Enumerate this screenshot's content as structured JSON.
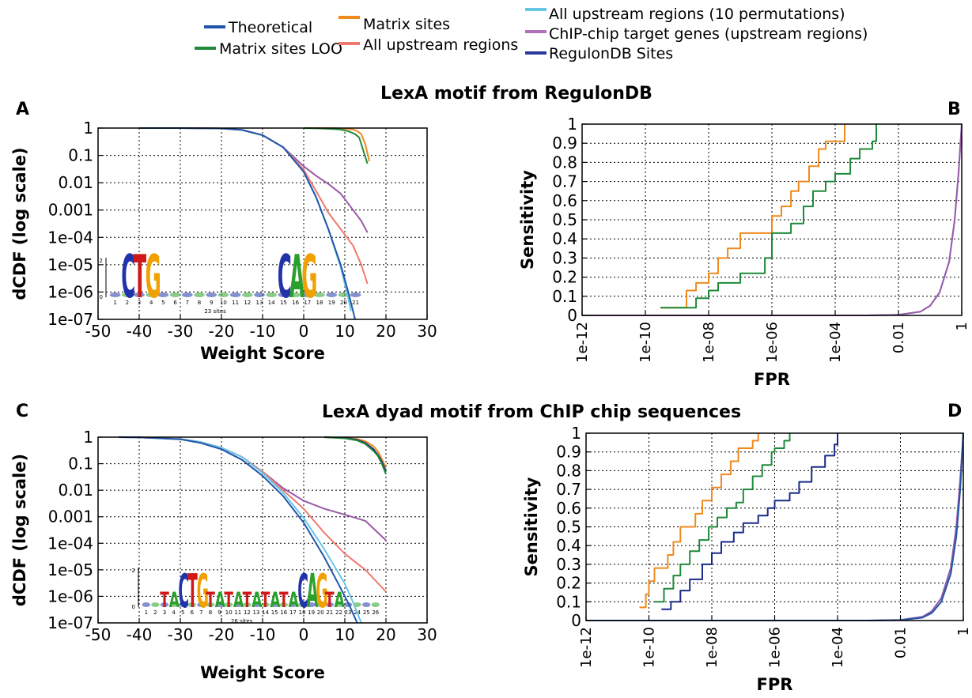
{
  "legend": [
    {
      "name": "Theoretical",
      "color": "#2255aa"
    },
    {
      "name": "Matrix sites LOO",
      "color": "#1f8a3a"
    },
    {
      "name": "Matrix sites",
      "color": "#f08a1c"
    },
    {
      "name": "All upstream regions",
      "color": "#f07870"
    },
    {
      "name": "All upstream regions (10 permutations)",
      "color": "#67c7e6"
    },
    {
      "name": "ChIP-chip target genes (upstream regions)",
      "color": "#b070b8"
    },
    {
      "name": "RegulonDB Sites",
      "color": "#2a3a9a"
    }
  ],
  "rows": [
    {
      "title": "LexA motif from RegulonDB"
    },
    {
      "title": "LexA dyad motif from ChIP chip sequences"
    }
  ],
  "colors": {
    "theoretical": "#2255aa",
    "loo": "#1f8a3a",
    "matrix": "#f08a1c",
    "upstream": "#f07870",
    "perm": "#67c7e6",
    "chip": "#9b59a8",
    "regulon": "#1a2a88"
  },
  "chart_data": [
    {
      "panel": "A",
      "type": "line",
      "xlabel": "Weight Score",
      "ylabel": "dCDF (log scale)",
      "xlim": [
        -50,
        30
      ],
      "ylim": [
        1e-07,
        1
      ],
      "yscale": "log",
      "xticks": [
        -50,
        -40,
        -30,
        -20,
        -10,
        0,
        10,
        20,
        30
      ],
      "yticks": [
        "1",
        "0.1",
        "0.01",
        "0.001",
        "1e-04",
        "1e-05",
        "1e-06",
        "1e-07"
      ],
      "logo_label": "23 sites",
      "logo_letters": [
        "C",
        "T",
        "G",
        "C",
        "A",
        "G"
      ],
      "series": [
        {
          "key": "chip",
          "x": [
            -40,
            -30,
            -20,
            -15,
            -10,
            -5,
            0,
            3,
            6,
            9,
            12,
            14,
            15.5
          ],
          "y": [
            1,
            1,
            0.97,
            0.85,
            0.55,
            0.2,
            0.04,
            0.018,
            0.009,
            0.004,
            0.001,
            0.0004,
            0.00015
          ]
        },
        {
          "key": "upstream",
          "x": [
            -40,
            -30,
            -20,
            -15,
            -10,
            -5,
            0,
            3,
            6,
            9,
            12,
            14,
            15.5
          ],
          "y": [
            1,
            1,
            0.97,
            0.85,
            0.55,
            0.2,
            0.03,
            0.005,
            0.0008,
            0.0002,
            5e-05,
            1e-05,
            2e-06
          ]
        },
        {
          "key": "perm",
          "x": [
            -40,
            -30,
            -20,
            -15,
            -10,
            -5,
            0,
            3,
            6,
            9,
            10.5,
            11.5
          ],
          "y": [
            1,
            1,
            0.97,
            0.85,
            0.55,
            0.2,
            0.025,
            0.003,
            0.0002,
            8e-06,
            1e-06,
            2e-07
          ]
        },
        {
          "key": "theoretical",
          "x": [
            -40,
            -30,
            -20,
            -15,
            -10,
            -5,
            0,
            3,
            6,
            9,
            11,
            12.5
          ],
          "y": [
            1,
            1,
            0.97,
            0.85,
            0.55,
            0.2,
            0.025,
            0.003,
            0.0002,
            1e-05,
            8e-07,
            1e-07
          ]
        },
        {
          "key": "matrix",
          "x": [
            0,
            5,
            8,
            10,
            12,
            13,
            14,
            15,
            16
          ],
          "y": [
            1,
            1,
            0.98,
            0.95,
            0.88,
            0.78,
            0.6,
            0.25,
            0.06
          ]
        },
        {
          "key": "loo",
          "x": [
            0,
            4,
            7,
            9,
            11,
            12.5,
            13.5,
            14.5,
            15.5
          ],
          "y": [
            1,
            0.97,
            0.93,
            0.88,
            0.75,
            0.6,
            0.45,
            0.15,
            0.05
          ]
        }
      ]
    },
    {
      "panel": "B",
      "type": "line",
      "xlabel": "FPR",
      "ylabel": "Sensitivity",
      "xlim": [
        1e-12,
        1
      ],
      "xscale": "log",
      "ylim": [
        0,
        1
      ],
      "xticks": [
        "1e-12",
        "1e-10",
        "1e-08",
        "1e-06",
        "1e-04",
        "0.01",
        "1"
      ],
      "yticks": [
        0,
        0.1,
        0.2,
        0.3,
        0.4,
        0.5,
        0.6,
        0.7,
        0.8,
        0.9,
        1
      ],
      "series": [
        {
          "key": "matrix",
          "x": [
            3e-10,
            1e-09,
            2e-09,
            4e-09,
            6e-09,
            1e-08,
            2e-08,
            4e-08,
            1e-07,
            2e-07,
            5e-07,
            1e-06,
            2e-06,
            4e-06,
            7e-06,
            1.5e-05,
            3e-05,
            5e-05,
            0.0001,
            0.0002
          ],
          "y": [
            0.04,
            0.04,
            0.13,
            0.17,
            0.17,
            0.22,
            0.3,
            0.35,
            0.43,
            0.43,
            0.43,
            0.52,
            0.57,
            0.65,
            0.7,
            0.78,
            0.87,
            0.91,
            0.91,
            1
          ]
        },
        {
          "key": "loo",
          "x": [
            3e-10,
            2e-09,
            4e-09,
            1e-08,
            2e-08,
            5e-08,
            1e-07,
            4e-07,
            6e-07,
            1e-06,
            2e-06,
            4e-06,
            1e-05,
            2e-05,
            5e-05,
            0.0001,
            0.0003,
            0.0006,
            0.0015,
            0.002
          ],
          "y": [
            0.04,
            0.04,
            0.09,
            0.13,
            0.17,
            0.17,
            0.22,
            0.22,
            0.3,
            0.43,
            0.43,
            0.48,
            0.57,
            0.65,
            0.7,
            0.74,
            0.82,
            0.87,
            0.91,
            1
          ]
        },
        {
          "key": "perm",
          "x": [
            1e-12,
            0.001,
            0.01,
            0.05,
            0.1,
            0.2,
            0.4,
            0.6,
            0.8,
            1
          ],
          "y": [
            0,
            0,
            0.003,
            0.02,
            0.05,
            0.12,
            0.28,
            0.5,
            0.75,
            1
          ]
        },
        {
          "key": "chip",
          "x": [
            1e-12,
            0.001,
            0.01,
            0.05,
            0.1,
            0.2,
            0.4,
            0.6,
            0.8,
            1
          ],
          "y": [
            0,
            0,
            0.003,
            0.02,
            0.05,
            0.12,
            0.28,
            0.5,
            0.75,
            1
          ]
        }
      ]
    },
    {
      "panel": "C",
      "type": "line",
      "xlabel": "Weight Score",
      "ylabel": "dCDF (log scale)",
      "xlim": [
        -50,
        30
      ],
      "ylim": [
        1e-07,
        1
      ],
      "yscale": "log",
      "xticks": [
        -50,
        -40,
        -30,
        -20,
        -10,
        0,
        10,
        20,
        30
      ],
      "yticks": [
        "1",
        "0.1",
        "0.01",
        "0.001",
        "1e-04",
        "1e-05",
        "1e-06",
        "1e-07"
      ],
      "logo_label": "26 sites",
      "logo_letters": [
        "T",
        "A",
        "C",
        "T",
        "G",
        "T",
        "A",
        "T",
        "A",
        "T",
        "A",
        "T",
        "A",
        "T",
        "A",
        "C",
        "A",
        "G",
        "T",
        "A"
      ],
      "series": [
        {
          "key": "chip",
          "x": [
            -45,
            -40,
            -30,
            -25,
            -20,
            -15,
            -10,
            -5,
            0,
            5,
            10,
            15,
            20
          ],
          "y": [
            1,
            0.98,
            0.85,
            0.65,
            0.4,
            0.18,
            0.05,
            0.012,
            0.004,
            0.002,
            0.0012,
            0.0007,
            0.00013
          ]
        },
        {
          "key": "upstream",
          "x": [
            -45,
            -40,
            -30,
            -25,
            -20,
            -15,
            -10,
            -5,
            0,
            5,
            10,
            15,
            20
          ],
          "y": [
            1,
            0.98,
            0.85,
            0.65,
            0.4,
            0.18,
            0.05,
            0.01,
            0.002,
            0.00025,
            4e-05,
            1e-05,
            1.5e-06
          ]
        },
        {
          "key": "perm",
          "x": [
            -45,
            -40,
            -30,
            -25,
            -20,
            -15,
            -10,
            -5,
            0,
            5,
            10,
            12,
            14
          ],
          "y": [
            1,
            0.98,
            0.85,
            0.65,
            0.4,
            0.18,
            0.045,
            0.008,
            0.0009,
            6e-05,
            3e-06,
            6e-07,
            1e-07
          ]
        },
        {
          "key": "theoretical",
          "x": [
            -45,
            -40,
            -30,
            -25,
            -20,
            -15,
            -10,
            -5,
            0,
            5,
            9,
            11,
            13
          ],
          "y": [
            1,
            0.98,
            0.83,
            0.6,
            0.35,
            0.14,
            0.035,
            0.006,
            0.0006,
            3e-05,
            2e-06,
            5e-07,
            1e-07
          ]
        },
        {
          "key": "matrix",
          "x": [
            5,
            10,
            13,
            15,
            17,
            18,
            19,
            20
          ],
          "y": [
            1,
            0.95,
            0.85,
            0.7,
            0.45,
            0.3,
            0.15,
            0.07
          ]
        },
        {
          "key": "regulon",
          "x": [
            5,
            10,
            13,
            15,
            17,
            18,
            19,
            20
          ],
          "y": [
            1,
            0.92,
            0.8,
            0.6,
            0.35,
            0.22,
            0.12,
            0.05
          ]
        },
        {
          "key": "loo",
          "x": [
            5,
            10,
            13,
            15,
            17,
            18,
            19,
            20
          ],
          "y": [
            1,
            0.9,
            0.75,
            0.55,
            0.3,
            0.2,
            0.1,
            0.04
          ]
        }
      ]
    },
    {
      "panel": "D",
      "type": "line",
      "xlabel": "FPR",
      "ylabel": "Sensitivity",
      "xlim": [
        1e-12,
        1
      ],
      "xscale": "log",
      "ylim": [
        0,
        1
      ],
      "xticks": [
        "1e-12",
        "1e-10",
        "1e-08",
        "1e-06",
        "1e-04",
        "0.01",
        "1"
      ],
      "yticks": [
        0,
        0.1,
        0.2,
        0.3,
        0.4,
        0.5,
        0.6,
        0.7,
        0.8,
        0.9,
        1
      ],
      "series": [
        {
          "key": "matrix",
          "x": [
            5e-11,
            8e-11,
            1e-10,
            1.5e-10,
            2.5e-10,
            4e-10,
            6e-10,
            1e-09,
            2e-09,
            3e-09,
            5e-09,
            1e-08,
            2e-08,
            4e-08,
            7e-08,
            1e-07,
            2e-07,
            3e-07
          ],
          "y": [
            0.07,
            0.14,
            0.21,
            0.28,
            0.28,
            0.35,
            0.42,
            0.5,
            0.5,
            0.57,
            0.64,
            0.71,
            0.78,
            0.85,
            0.92,
            0.92,
            0.96,
            1
          ]
        },
        {
          "key": "loo",
          "x": [
            1.5e-10,
            3e-10,
            6e-10,
            1e-09,
            2e-09,
            4e-09,
            8e-09,
            1.5e-08,
            3e-08,
            6e-08,
            1e-07,
            2e-07,
            4e-07,
            8e-07,
            1e-06,
            2e-06,
            3e-06
          ],
          "y": [
            0.1,
            0.17,
            0.24,
            0.3,
            0.37,
            0.43,
            0.5,
            0.55,
            0.6,
            0.63,
            0.7,
            0.77,
            0.83,
            0.9,
            0.92,
            0.96,
            1
          ]
        },
        {
          "key": "regulon",
          "x": [
            2.5e-10,
            5e-10,
            1e-09,
            2e-09,
            5e-09,
            1e-08,
            2e-08,
            5e-08,
            1e-07,
            3e-07,
            6e-07,
            1e-06,
            3e-06,
            6e-06,
            1.5e-05,
            4e-05,
            8e-05,
            0.0001
          ],
          "y": [
            0.06,
            0.1,
            0.16,
            0.22,
            0.3,
            0.36,
            0.42,
            0.47,
            0.52,
            0.56,
            0.6,
            0.64,
            0.68,
            0.74,
            0.82,
            0.88,
            0.94,
            1
          ]
        },
        {
          "key": "perm",
          "x": [
            1e-12,
            0.001,
            0.01,
            0.05,
            0.1,
            0.2,
            0.4,
            0.6,
            0.8,
            1
          ],
          "y": [
            0,
            0,
            0.003,
            0.02,
            0.05,
            0.12,
            0.28,
            0.5,
            0.75,
            1
          ]
        },
        {
          "key": "chip",
          "x": [
            1e-12,
            0.001,
            0.01,
            0.05,
            0.1,
            0.2,
            0.4,
            0.6,
            0.8,
            1
          ],
          "y": [
            0,
            0,
            0.003,
            0.02,
            0.05,
            0.12,
            0.28,
            0.5,
            0.75,
            1
          ]
        },
        {
          "key": "theoretical",
          "x": [
            1e-12,
            0.001,
            0.01,
            0.05,
            0.1,
            0.2,
            0.4,
            0.6,
            0.8,
            1
          ],
          "y": [
            0,
            0,
            0.002,
            0.015,
            0.04,
            0.1,
            0.25,
            0.45,
            0.7,
            1
          ]
        }
      ]
    }
  ]
}
